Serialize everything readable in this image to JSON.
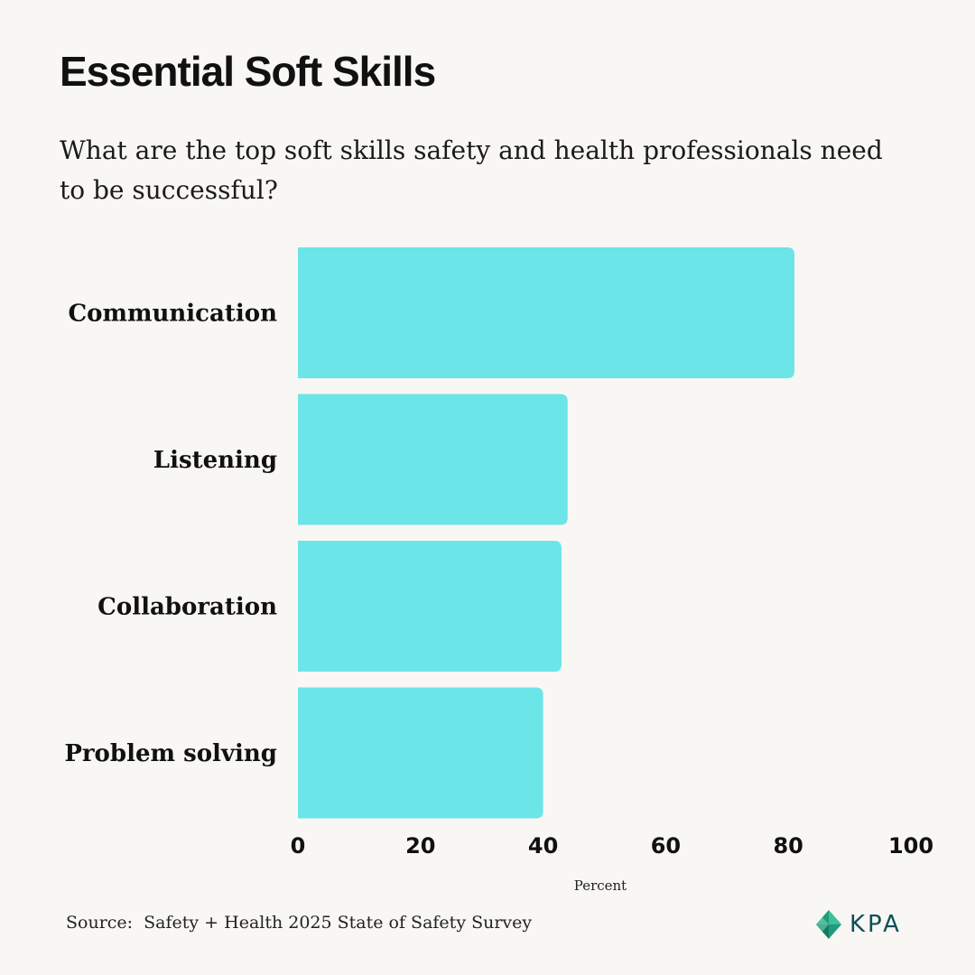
{
  "page": {
    "title": "Essential Soft Skills",
    "subtitle": "What are the top soft skills safety and health professionals need to be successful?",
    "source": "Source:  Safety + Health 2025 State of Safety Survey",
    "logo_text": "KPA"
  },
  "colors": {
    "background": "#f8f7f3",
    "bar": "#6be5e8",
    "logo_accent": "#1f9c7a",
    "logo_text": "#0b4f57"
  },
  "chart_data": {
    "type": "bar",
    "orientation": "horizontal",
    "categories": [
      "Communication",
      "Listening",
      "Collaboration",
      "Problem solving"
    ],
    "values": [
      81,
      44,
      43,
      40
    ],
    "title": "",
    "xlabel": "Percent",
    "ylabel": "",
    "xlim": [
      0,
      100
    ],
    "xticks": [
      "0",
      "20",
      "40",
      "60",
      "80",
      "100"
    ],
    "grid": false,
    "legend": "none"
  }
}
